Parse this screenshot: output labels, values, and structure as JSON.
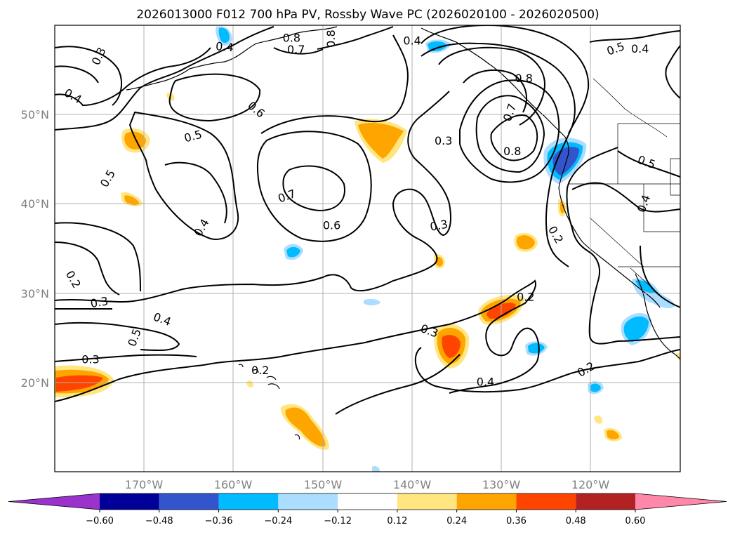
{
  "title": "2026013000 F012 700 hPa PV, Rossby Wave PC (2026020100 - 2026020500)",
  "map": {
    "lon_range": [
      -180,
      -110
    ],
    "lat_range": [
      10,
      60
    ],
    "lon_ticks": [
      {
        "value": -170,
        "label": "170°W"
      },
      {
        "value": -160,
        "label": "160°W"
      },
      {
        "value": -150,
        "label": "150°W"
      },
      {
        "value": -140,
        "label": "140°W"
      },
      {
        "value": -130,
        "label": "130°W"
      },
      {
        "value": -120,
        "label": "120°W"
      }
    ],
    "lat_ticks": [
      {
        "value": 50,
        "label": "50°N"
      },
      {
        "value": 40,
        "label": "40°N"
      },
      {
        "value": 30,
        "label": "30°N"
      },
      {
        "value": 20,
        "label": "20°N"
      }
    ],
    "gridlines": true,
    "tick_color": "#808080"
  },
  "contour_labels": [
    {
      "text": "0.3",
      "lon": -175,
      "lat": 56.5,
      "rot": 65
    },
    {
      "text": "0.4",
      "lon": -178,
      "lat": 52,
      "rot": -30
    },
    {
      "text": "0.4",
      "lon": -161,
      "lat": 57.5,
      "rot": -5
    },
    {
      "text": "0.6",
      "lon": -157.5,
      "lat": 50.5,
      "rot": -40
    },
    {
      "text": "0.5",
      "lon": -164.5,
      "lat": 47.5,
      "rot": 15
    },
    {
      "text": "0.5",
      "lon": -174,
      "lat": 42.8,
      "rot": 60
    },
    {
      "text": "0.4",
      "lon": -163.5,
      "lat": 37.3,
      "rot": 60
    },
    {
      "text": "0.7",
      "lon": -154,
      "lat": 40.8,
      "rot": 20
    },
    {
      "text": "0.6",
      "lon": -149,
      "lat": 37.5,
      "rot": 0
    },
    {
      "text": "0.8",
      "lon": -149,
      "lat": 58.5,
      "rot": 90
    },
    {
      "text": "0.8",
      "lon": -153.5,
      "lat": 58.5,
      "rot": 0
    },
    {
      "text": "0.7",
      "lon": -153,
      "lat": 57.2,
      "rot": 0
    },
    {
      "text": "0.4",
      "lon": -140,
      "lat": 58.2,
      "rot": 0
    },
    {
      "text": "0.3",
      "lon": -136.5,
      "lat": 47,
      "rot": 0
    },
    {
      "text": "0.3",
      "lon": -137,
      "lat": 37.5,
      "rot": 10
    },
    {
      "text": "0.7",
      "lon": -129,
      "lat": 50.2,
      "rot": 70
    },
    {
      "text": "0.8",
      "lon": -127.5,
      "lat": 54,
      "rot": 0
    },
    {
      "text": "0.8",
      "lon": -128.8,
      "lat": 45.8,
      "rot": 0
    },
    {
      "text": "0.5",
      "lon": -117.2,
      "lat": 57.3,
      "rot": 20
    },
    {
      "text": "0.4",
      "lon": -114.5,
      "lat": 57.3,
      "rot": 0
    },
    {
      "text": "0.5",
      "lon": -113.8,
      "lat": 44.6,
      "rot": -20
    },
    {
      "text": "0.4",
      "lon": -114,
      "lat": 40,
      "rot": 70
    },
    {
      "text": "0.2",
      "lon": -124,
      "lat": 36.5,
      "rot": -60
    },
    {
      "text": "0.2",
      "lon": -178,
      "lat": 31.5,
      "rot": -60
    },
    {
      "text": "0.3",
      "lon": -175,
      "lat": 28.9,
      "rot": 10
    },
    {
      "text": "0.4",
      "lon": -168,
      "lat": 27,
      "rot": -20
    },
    {
      "text": "0.5",
      "lon": -171,
      "lat": 25,
      "rot": 70
    },
    {
      "text": "0.3",
      "lon": -176,
      "lat": 22.5,
      "rot": 0
    },
    {
      "text": "0.2",
      "lon": -157,
      "lat": 21.3,
      "rot": 0
    },
    {
      "text": "0.3",
      "lon": -138.1,
      "lat": 25.7,
      "rot": -20
    },
    {
      "text": "0.2",
      "lon": -127.3,
      "lat": 29.5,
      "rot": 0
    },
    {
      "text": "0.4",
      "lon": -131.8,
      "lat": 20,
      "rot": 0
    },
    {
      "text": "0.2",
      "lon": -120.5,
      "lat": 21.4,
      "rot": 30
    }
  ],
  "colorbar": {
    "levels": [
      "−0.60",
      "−0.48",
      "−0.36",
      "−0.24",
      "−0.12",
      "0.12",
      "0.24",
      "0.36",
      "0.48",
      "0.60"
    ],
    "colors": [
      "#9933cc",
      "#000099",
      "#3355cc",
      "#00bbff",
      "#aaddff",
      "#ffffff",
      "#ffe680",
      "#ffa500",
      "#ff4400",
      "#b22222",
      "#ff88aa"
    ],
    "extend": "both"
  }
}
